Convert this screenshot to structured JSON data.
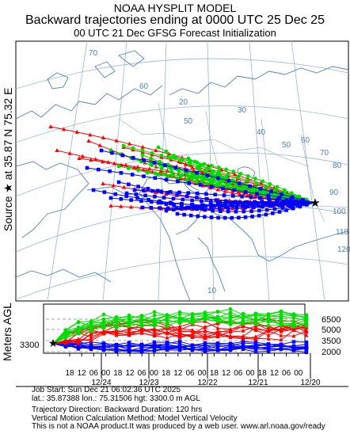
{
  "header": {
    "line1": "NOAA HYSPLIT MODEL",
    "line2": "Backward trajectories ending at 0000 UTC 25 Dec 25",
    "line3": "00 UTC 21 Dec    GFSG  Forecast Initialization"
  },
  "map": {
    "source_label": "Source ★ at   35.87 N   75.32 E",
    "graticule_labels": [
      "20",
      "30",
      "40",
      "50",
      "60",
      "70",
      "80",
      "90",
      "100",
      "110",
      "120",
      "70",
      "60",
      "50",
      "10"
    ]
  },
  "vertical_panel": {
    "ylabel": "Meters AGL",
    "start_height": "3300",
    "right_levels": [
      "6500",
      "5000",
      "3500",
      "2000"
    ],
    "hour_labels": [
      "18",
      "12",
      "06",
      "00",
      "18",
      "12",
      "06",
      "00",
      "18",
      "12",
      "06",
      "00",
      "18",
      "12",
      "06",
      "00",
      "18",
      "12",
      "06",
      "00"
    ],
    "date_labels": [
      "12/24",
      "12/23",
      "12/22",
      "12/21",
      "12/20"
    ]
  },
  "footer": {
    "line1": "Job Start: Sun Dec 21 06:02:36 UTC 2025",
    "line2": "lat.: 35.87388   lon.: 75.31506   hgt: 3300.0 m AGL",
    "line3": "Trajectory Direction: Backward        Duration: 120 hrs",
    "line4": "Vertical Motion Calculation Method: Model Vertical Velocity",
    "line5": "This is not a NOAA product.It was produced by a web user. www.arl.noaa.gov/ready"
  },
  "colors": {
    "red": "#ff0000",
    "blue": "#0000ff",
    "green": "#00dd00",
    "map": "#4f7fbf"
  }
}
